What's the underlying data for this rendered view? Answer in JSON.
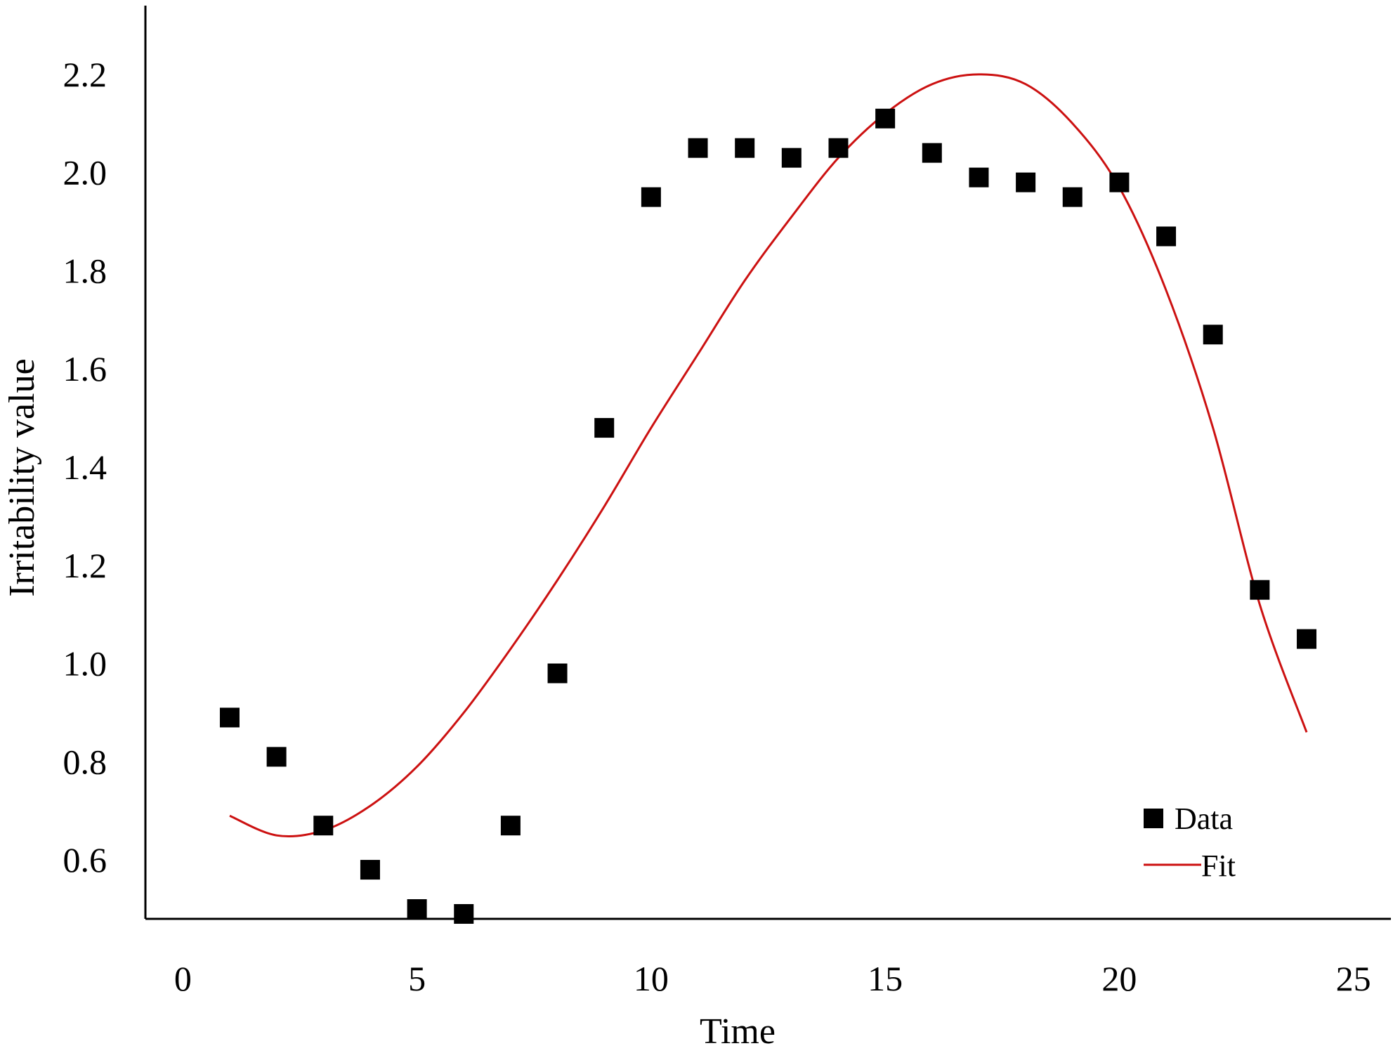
{
  "chart_data": {
    "type": "scatter",
    "title": "",
    "xlabel": "Time",
    "ylabel": "Irritability value",
    "xlim": [
      -0.8,
      25.8
    ],
    "ylim": [
      0.48,
      2.34
    ],
    "x_ticks": [
      0,
      5,
      10,
      15,
      20,
      25
    ],
    "y_ticks": [
      0.6,
      0.8,
      1.0,
      1.2,
      1.4,
      1.6,
      1.8,
      2.0,
      2.2
    ],
    "x_tick_labels": [
      "0",
      "5",
      "10",
      "15",
      "20",
      "25"
    ],
    "y_tick_labels": [
      "0.6",
      "0.8",
      "1.0",
      "1.2",
      "1.4",
      "1.6",
      "1.8",
      "2.0",
      "2.2"
    ],
    "grid": false,
    "legend_position": "bottom-right",
    "series": [
      {
        "name": "Data",
        "kind": "scatter",
        "marker": "square",
        "color": "#000000",
        "x": [
          1,
          2,
          3,
          4,
          5,
          6,
          7,
          8,
          9,
          10,
          11,
          12,
          13,
          14,
          15,
          16,
          17,
          18,
          19,
          20,
          21,
          22,
          23,
          24
        ],
        "y": [
          0.89,
          0.81,
          0.67,
          0.58,
          0.5,
          0.49,
          0.67,
          0.98,
          1.48,
          1.95,
          2.05,
          2.05,
          2.03,
          2.05,
          2.11,
          2.04,
          1.99,
          1.98,
          1.95,
          1.98,
          1.87,
          1.67,
          1.15,
          1.05
        ]
      },
      {
        "name": "Fit",
        "kind": "line",
        "color": "#cc1111",
        "x": [
          1,
          2,
          3,
          4,
          5,
          6,
          7,
          8,
          9,
          10,
          11,
          12,
          13,
          14,
          15,
          16,
          17,
          18,
          19,
          20,
          21,
          22,
          23,
          24
        ],
        "y": [
          0.69,
          0.65,
          0.66,
          0.71,
          0.79,
          0.9,
          1.03,
          1.17,
          1.32,
          1.48,
          1.63,
          1.78,
          1.91,
          2.03,
          2.12,
          2.18,
          2.2,
          2.18,
          2.1,
          1.97,
          1.76,
          1.48,
          1.12,
          0.86
        ]
      }
    ]
  }
}
